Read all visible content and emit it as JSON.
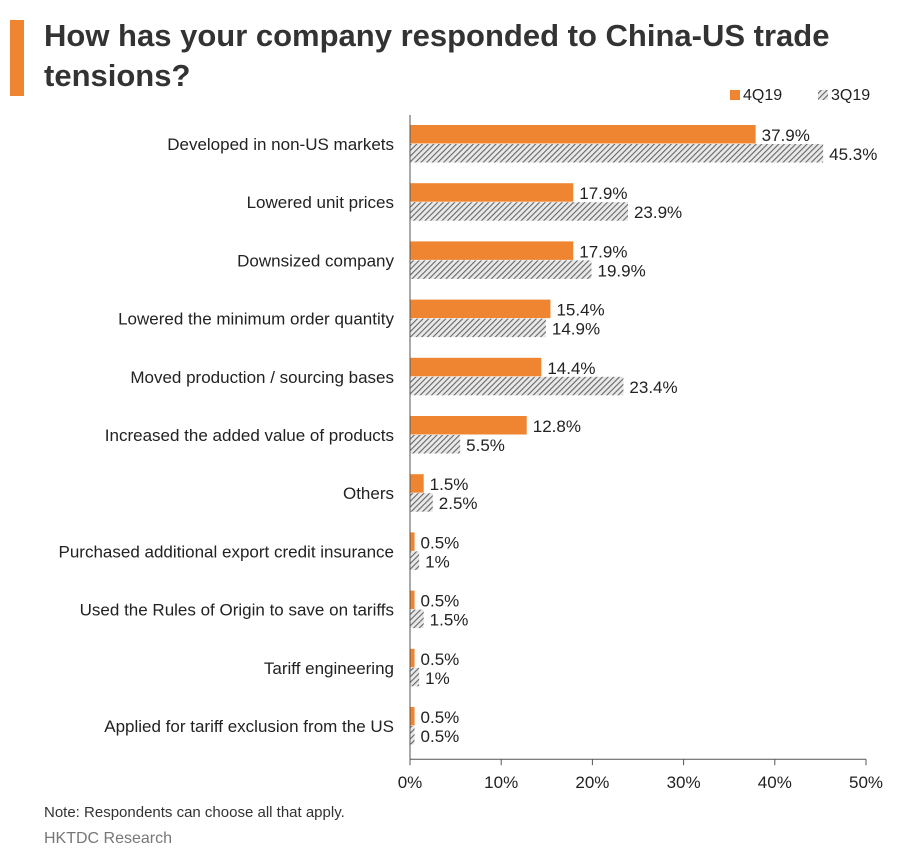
{
  "header": {
    "title": "How has your company responded to China-US trade tensions?"
  },
  "colors": {
    "accent": "#EF8531",
    "series_4q19": "#EF8531",
    "series_3q19_stripe": "#666666",
    "axis": "#555555"
  },
  "chart_data": {
    "type": "bar",
    "orientation": "horizontal",
    "title": "How has your company responded to China-US trade tensions?",
    "categories": [
      "Developed in non-US markets",
      "Lowered unit prices",
      "Downsized company",
      "Lowered the minimum order quantity",
      "Moved production / sourcing bases",
      "Increased the added value of products",
      "Others",
      "Purchased additional export credit insurance",
      "Used the Rules of Origin to save on tariffs",
      "Tariff engineering",
      "Applied for tariff exclusion from the US"
    ],
    "series": [
      {
        "name": "4Q19",
        "values": [
          37.9,
          17.9,
          17.9,
          15.4,
          14.4,
          12.8,
          1.5,
          0.5,
          0.5,
          0.5,
          0.5
        ],
        "labels": [
          "37.9%",
          "17.9%",
          "17.9%",
          "15.4%",
          "14.4%",
          "12.8%",
          "1.5%",
          "0.5%",
          "0.5%",
          "0.5%",
          "0.5%"
        ]
      },
      {
        "name": "3Q19",
        "values": [
          45.3,
          23.9,
          19.9,
          14.9,
          23.4,
          5.5,
          2.5,
          1,
          1.5,
          1,
          0.5
        ],
        "labels": [
          "45.3%",
          "23.9%",
          "19.9%",
          "14.9%",
          "23.4%",
          "5.5%",
          "2.5%",
          "1%",
          "1.5%",
          "1%",
          "0.5%"
        ]
      }
    ],
    "xlim": [
      0,
      50
    ],
    "xticks": [
      0,
      10,
      20,
      30,
      40,
      50
    ],
    "xtick_labels": [
      "0%",
      "10%",
      "20%",
      "30%",
      "40%",
      "50%"
    ],
    "xlabel": "",
    "ylabel": "",
    "legend": [
      "4Q19",
      "3Q19"
    ],
    "legend_position": "top-right",
    "grid": false
  },
  "footer": {
    "note": "Note: Respondents can choose all that apply.",
    "source": "HKTDC Research"
  }
}
